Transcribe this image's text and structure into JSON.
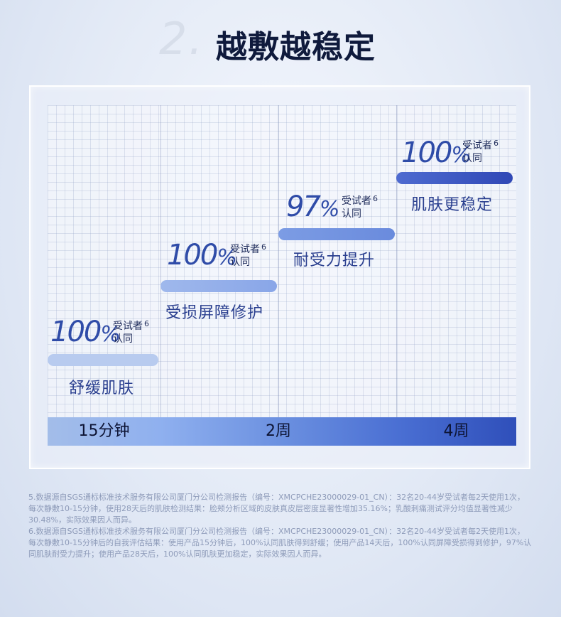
{
  "heading": {
    "number": "2.",
    "title": "越敷越稳定"
  },
  "periods": [
    "15分钟",
    "2周",
    "4周"
  ],
  "stages": [
    {
      "percent": "100",
      "percent_sign": "%",
      "note_line1": "受试者",
      "note_ref": "6",
      "note_line2": "认同",
      "label": "舒缓肌肤"
    },
    {
      "percent": "100",
      "percent_sign": "%",
      "note_line1": "受试者",
      "note_ref": "6",
      "note_line2": "认同",
      "label": "受损屏障修护"
    },
    {
      "percent": "97",
      "percent_sign": "%",
      "note_line1": "受试者",
      "note_ref": "6",
      "note_line2": "认同",
      "label": "耐受力提升"
    },
    {
      "percent": "100",
      "percent_sign": "%",
      "note_line1": "受试者",
      "note_ref": "6",
      "note_line2": "认同",
      "label": "肌肤更稳定"
    }
  ],
  "colors": {
    "bar1": "#b8cbef",
    "bar2": "#8eaaea",
    "bar3": "#6d8ee0",
    "bar4": "#3852bf"
  },
  "footnotes": [
    "5.数据源自SGS通标标准技术服务有限公司厦门分公司检测报告（编号：XMCPCHE23000029-01_CN）：32名20-44岁受试者每2天使用1次，每次静敷10-15分钟，使用28天后的肌肤检测结果：脸颊分析区域的皮肤真皮层密度显著性增加35.16%；乳酸刺痛测试评分均值显著性减少30.48%，实际效果因人而异。",
    "6.数据源自SGS通标标准技术服务有限公司厦门分公司检测报告（编号：XMCPCHE23000029-01_CN）：32名20-44岁受试者每2天使用1次，每次静敷10-15分钟后的自我评估结果：使用产品15分钟后，100%认同肌肤得到舒缓；使用产品14天后，100%认同屏障受损得到修护，97%认同肌肤耐受力提升；使用产品28天后，100%认同肌肤更加稳定，实际效果因人而异。"
  ]
}
